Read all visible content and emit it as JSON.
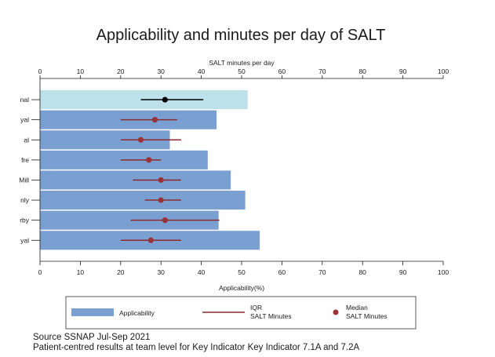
{
  "chart_data": {
    "type": "bar",
    "title": "Applicability and minutes per day of SALT",
    "top_axis_label": "SALT minutes per day",
    "bottom_axis_label": "Applicability(%)",
    "xlim": [
      0,
      100
    ],
    "ticks": [
      0,
      10,
      20,
      30,
      40,
      50,
      60,
      70,
      80,
      90,
      100
    ],
    "categories": [
      "nal",
      "yal",
      "al",
      "fre",
      "Mill",
      "nly",
      "rby",
      "yal"
    ],
    "applicability": [
      51.5,
      43.8,
      32.2,
      41.6,
      47.3,
      50.9,
      44.3,
      54.5
    ],
    "median_minutes": [
      31,
      28.5,
      25,
      27,
      30,
      30,
      31,
      27.5
    ],
    "iqr_minutes": [
      [
        25,
        40.5
      ],
      [
        20,
        34
      ],
      [
        20,
        35
      ],
      [
        20,
        30
      ],
      [
        23,
        35
      ],
      [
        26,
        35
      ],
      [
        22.5,
        44.5
      ],
      [
        20,
        35
      ]
    ],
    "highlight_index": 0,
    "colors": {
      "bar": "#7aa0d2",
      "bar_highlight": "#bde1ea",
      "iqr": "#8b2a2f",
      "median": "#9b3238",
      "iqr_highlight": "#000000",
      "median_highlight": "#000000"
    },
    "legend": {
      "applicability": "Applicability",
      "iqr": [
        "IQR",
        "SALT Minutes"
      ],
      "median": [
        "Median",
        "SALT Minutes"
      ]
    }
  },
  "source_lines": [
    "Source  SSNAP Jul-Sep 2021",
    "Patient-centred results at team level for Key Indicator Key Indicator 7.1A and 7.2A"
  ]
}
